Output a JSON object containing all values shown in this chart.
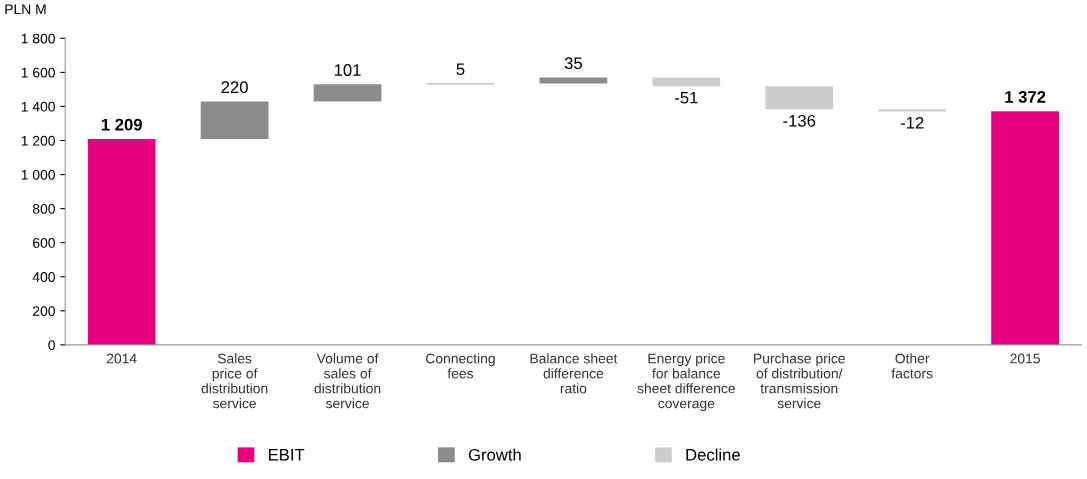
{
  "chart_data": {
    "type": "bar",
    "ylabel": "PLN M",
    "categories": [
      "2014",
      "Sales\nprice of\ndistribution\nservice",
      "Volume of\nsales of\ndistribution\nservice",
      "Connecting\nfees",
      "Balance sheet\ndifference\nratio",
      "Energy price\nfor balance\nsheet difference\ncoverage",
      "Purchase price\nof distribution/\ntransmission\nservice",
      "Other\nfactors",
      "2015"
    ],
    "series": [
      {
        "name": "EBIT",
        "color": "#e6007e",
        "base": [
          0,
          null,
          null,
          null,
          null,
          null,
          null,
          null,
          0
        ],
        "values": [
          1209,
          null,
          null,
          null,
          null,
          null,
          null,
          null,
          1372
        ],
        "value_labels": [
          "1 209",
          null,
          null,
          null,
          null,
          null,
          null,
          null,
          "1 372"
        ]
      },
      {
        "name": "Growth",
        "color": "#8c8c8c",
        "base": [
          null,
          1209,
          1429,
          1530,
          1535,
          null,
          null,
          null,
          null
        ],
        "values": [
          null,
          220,
          101,
          5,
          35,
          null,
          null,
          null,
          null
        ],
        "value_labels": [
          null,
          "220",
          "101",
          "5",
          "35",
          null,
          null,
          null,
          null
        ]
      },
      {
        "name": "Decline",
        "color": "#cccccc",
        "base": [
          null,
          null,
          null,
          null,
          null,
          1570,
          1519,
          1383,
          null
        ],
        "values": [
          null,
          null,
          null,
          null,
          null,
          -51,
          -136,
          -12,
          null
        ],
        "value_labels": [
          null,
          null,
          null,
          null,
          null,
          "-51",
          "-136",
          "-12",
          null
        ]
      }
    ],
    "ylim": [
      0,
      1800
    ],
    "yticks": [
      0,
      200,
      400,
      600,
      800,
      {
        "value": 1000,
        "label": "1 000"
      },
      {
        "value": 1200,
        "label": "1 200"
      },
      {
        "value": 1400,
        "label": "1 400"
      },
      {
        "value": 1600,
        "label": "1 600"
      },
      {
        "value": 1800,
        "label": "1 800"
      }
    ],
    "grid": false,
    "legend": "bottom"
  }
}
